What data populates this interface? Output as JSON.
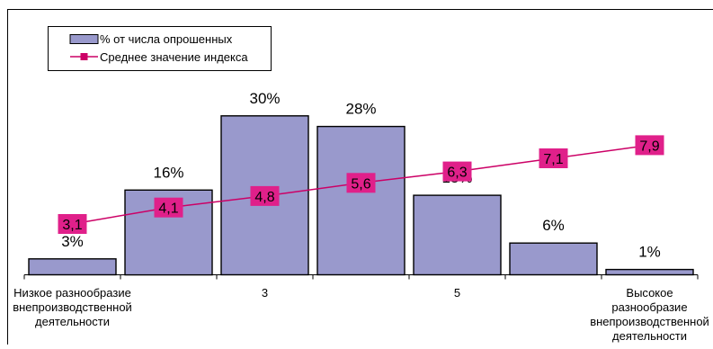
{
  "chart_data": {
    "type": "bar",
    "categories": [
      "Низкое разнообразие внепроизводственной деятельности",
      "",
      "3",
      "",
      "5",
      "",
      "Высокое разнообразие внепроизводственной деятельности"
    ],
    "category_label_lines": [
      [
        "Низкое разнообразие",
        "внепроизводственной",
        "деятельности"
      ],
      [],
      [
        "3"
      ],
      [],
      [
        "5"
      ],
      [],
      [
        "Высокое",
        "разнообразие",
        "внепроизводственной",
        "деятельности"
      ]
    ],
    "series": [
      {
        "name": "% от числа опрошенных",
        "type": "bar",
        "values": [
          3,
          16,
          30,
          28,
          15,
          6,
          1
        ],
        "labels": [
          "3%",
          "16%",
          "30%",
          "28%",
          "15%",
          "6%",
          "1%"
        ],
        "color": "#9999cc"
      },
      {
        "name": "Среднее значение индекса",
        "type": "line",
        "values": [
          3.1,
          4.1,
          4.8,
          5.6,
          6.3,
          7.1,
          7.9
        ],
        "labels": [
          "3,1",
          "4,1",
          "4,8",
          "5,6",
          "6,3",
          "7,1",
          "7,9"
        ],
        "color": "#cc0066",
        "label_background": "#e0208a"
      }
    ],
    "ylim_bar": [
      0,
      32
    ],
    "ylim_line": [
      0,
      9.3
    ],
    "legend_position": "top-left",
    "grid": false
  }
}
